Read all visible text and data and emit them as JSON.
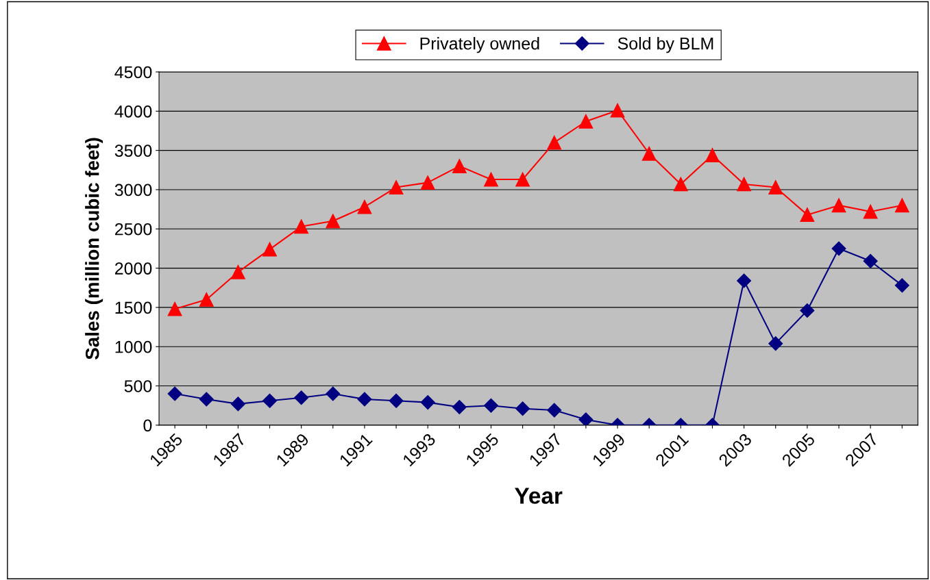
{
  "chart_data": {
    "type": "line",
    "xlabel": "Year",
    "ylabel": "Sales (million cubic feet)",
    "categories": [
      "1985",
      null,
      "1987",
      null,
      "1989",
      null,
      "1991",
      null,
      "1993",
      null,
      "1995",
      null,
      "1997",
      null,
      "1999",
      null,
      "2001",
      null,
      "2003",
      null,
      "2005",
      null,
      "2007",
      null
    ],
    "series": [
      {
        "name": "Privately owned",
        "color": "#ff0000",
        "marker": "triangle",
        "values": [
          1480,
          1600,
          1950,
          2240,
          2530,
          2600,
          2780,
          3030,
          3090,
          3300,
          3130,
          3130,
          3600,
          3870,
          4010,
          3460,
          3070,
          3440,
          3070,
          3030,
          2680,
          2800,
          2720,
          2800
        ]
      },
      {
        "name": "Sold by BLM",
        "color": "#000080",
        "marker": "diamond",
        "values": [
          400,
          330,
          270,
          310,
          350,
          400,
          330,
          310,
          290,
          230,
          250,
          210,
          190,
          70,
          0,
          0,
          0,
          0,
          1840,
          1040,
          1460,
          2250,
          2090,
          1780
        ]
      }
    ],
    "ylim": [
      0,
      4500
    ],
    "yticks": [
      0,
      500,
      1000,
      1500,
      2000,
      2500,
      3000,
      3500,
      4000,
      4500
    ],
    "grid": "y",
    "legend": "top",
    "line_style": "solid"
  }
}
